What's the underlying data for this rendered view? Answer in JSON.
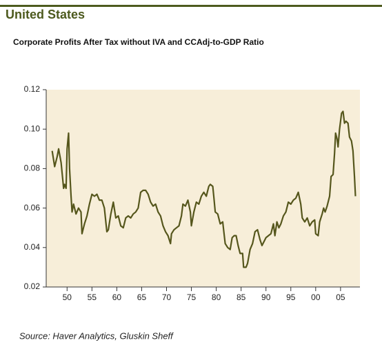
{
  "chart_data": {
    "type": "line",
    "title": "United States",
    "subtitle": "Corporate Profits After Tax without IVA and CCAdj-to-GDP Ratio",
    "source": "Source: Haver Analytics, Gluskin Sheff",
    "x": [
      1947.0,
      1947.5,
      1948.0,
      1948.3,
      1948.8,
      1949.3,
      1949.5,
      1949.8,
      1950.0,
      1950.3,
      1950.5,
      1950.8,
      1951.0,
      1951.3,
      1951.8,
      1952.3,
      1952.8,
      1953.0,
      1953.5,
      1954.0,
      1954.5,
      1955.0,
      1955.5,
      1956.0,
      1956.5,
      1957.0,
      1957.5,
      1958.0,
      1958.3,
      1958.8,
      1959.3,
      1959.8,
      1960.3,
      1960.8,
      1961.3,
      1961.8,
      1962.3,
      1962.8,
      1963.3,
      1963.8,
      1964.3,
      1964.8,
      1965.3,
      1965.8,
      1966.3,
      1966.8,
      1967.3,
      1967.8,
      1968.3,
      1968.8,
      1969.3,
      1969.8,
      1970.3,
      1970.8,
      1971.0,
      1971.5,
      1972.0,
      1972.5,
      1973.0,
      1973.3,
      1973.8,
      1974.3,
      1974.8,
      1975.0,
      1975.5,
      1976.0,
      1976.5,
      1977.0,
      1977.5,
      1978.0,
      1978.5,
      1978.8,
      1979.3,
      1979.5,
      1979.8,
      1980.3,
      1980.8,
      1981.3,
      1981.8,
      1982.3,
      1982.8,
      1983.2,
      1983.6,
      1984.0,
      1984.4,
      1984.8,
      1985.3,
      1985.5,
      1986.0,
      1986.3,
      1986.8,
      1987.3,
      1987.8,
      1988.3,
      1988.8,
      1989.2,
      1989.6,
      1990.0,
      1990.5,
      1991.0,
      1991.5,
      1991.8,
      1992.2,
      1992.6,
      1993.0,
      1993.5,
      1994.0,
      1994.5,
      1995.0,
      1995.5,
      1996.0,
      1996.5,
      1997.0,
      1997.3,
      1997.8,
      1998.3,
      1998.8,
      1999.3,
      1999.8,
      2000.0,
      2000.5,
      2000.8,
      2001.3,
      2001.6,
      2001.9,
      2002.3,
      2002.8,
      2003.1,
      2003.5,
      2003.8,
      2004.0,
      2004.3,
      2004.5,
      2004.8,
      2005.2,
      2005.5,
      2005.8,
      2006.1,
      2006.5,
      2006.8,
      2007.2,
      2007.5,
      2007.8,
      2008.0
    ],
    "series": [
      {
        "name": "Corporate Profits After Tax without IVA and CCAdj-to-GDP Ratio",
        "color": "#55561c",
        "values": [
          0.089,
          0.081,
          0.086,
          0.09,
          0.083,
          0.07,
          0.072,
          0.07,
          0.09,
          0.098,
          0.08,
          0.066,
          0.058,
          0.062,
          0.057,
          0.06,
          0.058,
          0.047,
          0.052,
          0.056,
          0.062,
          0.067,
          0.066,
          0.067,
          0.064,
          0.064,
          0.06,
          0.048,
          0.049,
          0.057,
          0.063,
          0.055,
          0.056,
          0.051,
          0.05,
          0.055,
          0.056,
          0.055,
          0.057,
          0.058,
          0.06,
          0.068,
          0.069,
          0.069,
          0.067,
          0.063,
          0.061,
          0.062,
          0.058,
          0.056,
          0.051,
          0.048,
          0.046,
          0.042,
          0.047,
          0.049,
          0.05,
          0.051,
          0.056,
          0.062,
          0.061,
          0.064,
          0.058,
          0.051,
          0.058,
          0.063,
          0.062,
          0.066,
          0.068,
          0.066,
          0.071,
          0.072,
          0.071,
          0.066,
          0.058,
          0.057,
          0.052,
          0.053,
          0.042,
          0.04,
          0.039,
          0.045,
          0.046,
          0.046,
          0.041,
          0.037,
          0.037,
          0.03,
          0.03,
          0.032,
          0.039,
          0.042,
          0.048,
          0.049,
          0.044,
          0.041,
          0.043,
          0.045,
          0.046,
          0.047,
          0.052,
          0.046,
          0.053,
          0.05,
          0.052,
          0.056,
          0.058,
          0.063,
          0.062,
          0.064,
          0.065,
          0.068,
          0.062,
          0.055,
          0.053,
          0.055,
          0.051,
          0.053,
          0.054,
          0.047,
          0.046,
          0.053,
          0.057,
          0.06,
          0.058,
          0.061,
          0.066,
          0.076,
          0.077,
          0.088,
          0.098,
          0.095,
          0.091,
          0.1,
          0.108,
          0.109,
          0.103,
          0.104,
          0.103,
          0.096,
          0.094,
          0.089,
          0.076,
          0.066
        ]
      }
    ],
    "xlim": [
      1945.8,
      2008.9
    ],
    "ylim": [
      0.02,
      0.12
    ],
    "xticks": [
      {
        "value": 1950,
        "label": "50"
      },
      {
        "value": 1955,
        "label": "55"
      },
      {
        "value": 1960,
        "label": "60"
      },
      {
        "value": 1965,
        "label": "65"
      },
      {
        "value": 1970,
        "label": "70"
      },
      {
        "value": 1975,
        "label": "75"
      },
      {
        "value": 1980,
        "label": "80"
      },
      {
        "value": 1985,
        "label": "85"
      },
      {
        "value": 1990,
        "label": "90"
      },
      {
        "value": 1995,
        "label": "95"
      },
      {
        "value": 2000,
        "label": "00"
      },
      {
        "value": 2005,
        "label": "05"
      }
    ],
    "yticks": [
      0.02,
      0.04,
      0.06,
      0.08,
      {
        "value": 0.1,
        "label": "0.10"
      },
      0.12
    ],
    "grid": false
  }
}
